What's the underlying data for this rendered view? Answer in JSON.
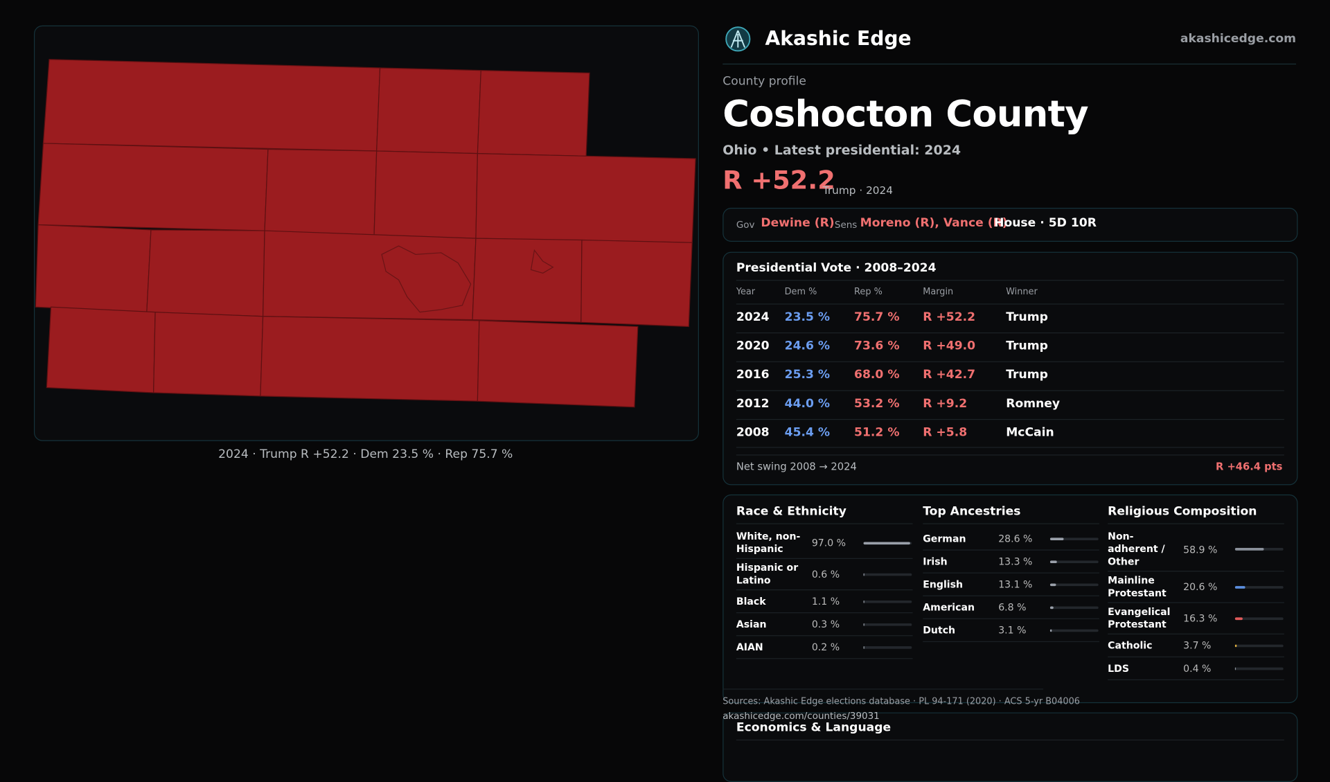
{
  "brand": {
    "name": "Akashic Edge",
    "site": "akashicedge.com"
  },
  "map": {
    "caption": "2024 · Trump R +52.2 · Dem 23.5 % · Rep 75.7 %"
  },
  "profile": {
    "kicker": "County profile",
    "title": "Coshocton County",
    "subtitle": "Ohio • Latest presidential: 2024",
    "margin": "R +52.2",
    "margin_note": "Trump · 2024"
  },
  "officials": {
    "gov_label": "Gov",
    "gov": "Dewine (R)",
    "sens_label": "Sens",
    "sens": "Moreno (R), Vance (R)",
    "house": "House · 5D 10R"
  },
  "presidential": {
    "title": "Presidential Vote · 2008–2024",
    "headers": [
      "Year",
      "Dem %",
      "Rep %",
      "Margin",
      "Winner"
    ],
    "rows": [
      [
        "2024",
        "23.5 %",
        "75.7 %",
        "R +52.2",
        "Trump"
      ],
      [
        "2020",
        "24.6 %",
        "73.6 %",
        "R +49.0",
        "Trump"
      ],
      [
        "2016",
        "25.3 %",
        "68.0 %",
        "R +42.7",
        "Trump"
      ],
      [
        "2012",
        "44.0 %",
        "53.2 %",
        "R +9.2",
        "Romney"
      ],
      [
        "2008",
        "45.4 %",
        "51.2 %",
        "R +5.8",
        "McCain"
      ]
    ],
    "swing_label": "Net swing 2008 → 2024",
    "swing": "R +46.4 pts"
  },
  "demographics": [
    {
      "title": "Race & Ethnicity",
      "rows": [
        {
          "label": "White, non-Hispanic",
          "value": 97.0,
          "value_label": "97.0 %",
          "color": "#9aa0aa"
        },
        {
          "label": "Hispanic or Latino",
          "value": 0.6,
          "value_label": "0.6 %",
          "color": "#9aa0aa"
        },
        {
          "label": "Black",
          "value": 1.1,
          "value_label": "1.1 %",
          "color": "#9aa0aa"
        },
        {
          "label": "Asian",
          "value": 0.3,
          "value_label": "0.3 %",
          "color": "#9aa0aa"
        },
        {
          "label": "AIAN",
          "value": 0.2,
          "value_label": "0.2 %",
          "color": "#9aa0aa"
        }
      ]
    },
    {
      "title": "Top Ancestries",
      "rows": [
        {
          "label": "German",
          "value": 28.6,
          "value_label": "28.6 %",
          "color": "#9aa0aa"
        },
        {
          "label": "Irish",
          "value": 13.3,
          "value_label": "13.3 %",
          "color": "#9aa0aa"
        },
        {
          "label": "English",
          "value": 13.1,
          "value_label": "13.1 %",
          "color": "#9aa0aa"
        },
        {
          "label": "American",
          "value": 6.8,
          "value_label": "6.8 %",
          "color": "#9aa0aa"
        },
        {
          "label": "Dutch",
          "value": 3.1,
          "value_label": "3.1 %",
          "color": "#9aa0aa"
        }
      ]
    },
    {
      "title": "Religious Composition",
      "rows": [
        {
          "label": "Non-adherent / Other",
          "value": 58.9,
          "value_label": "58.9 %",
          "color": "#8a909a"
        },
        {
          "label": "Mainline Protestant",
          "value": 20.6,
          "value_label": "20.6 %",
          "color": "#5b8fe0"
        },
        {
          "label": "Evangelical Protestant",
          "value": 16.3,
          "value_label": "16.3 %",
          "color": "#e05a5a"
        },
        {
          "label": "Catholic",
          "value": 3.7,
          "value_label": "3.7 %",
          "color": "#e0b040"
        },
        {
          "label": "LDS",
          "value": 0.4,
          "value_label": "0.4 %",
          "color": "#8a909a"
        }
      ]
    }
  ],
  "sources": {
    "line": "Sources: Akashic Edge elections database · PL 94-171 (2020) · ACS 5-yr B04006",
    "url": "akashicedge.com/counties/39031"
  },
  "economics": {
    "title": "Economics & Language"
  }
}
